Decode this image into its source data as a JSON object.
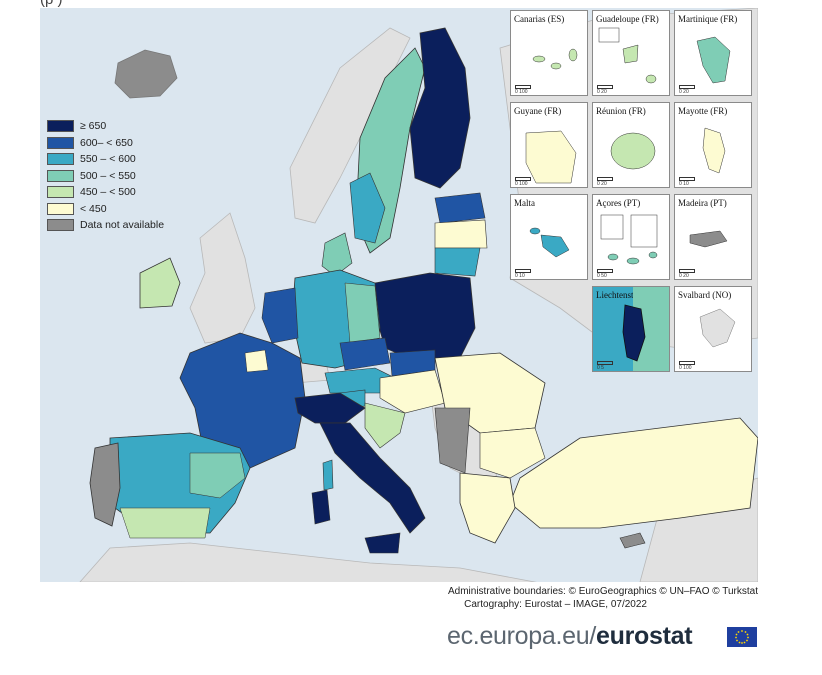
{
  "header": {
    "title_fragment": "(p                                                       )"
  },
  "legend": {
    "items": [
      {
        "label": "≥ 650",
        "color": "#0b1f5c"
      },
      {
        "label": "600– < 650",
        "color": "#2055a4"
      },
      {
        "label": "550 – < 600",
        "color": "#3aa9c4"
      },
      {
        "label": "500 – < 550",
        "color": "#7fcdb5"
      },
      {
        "label": "450 – < 500",
        "color": "#c5e7b1"
      },
      {
        "label": "< 450",
        "color": "#fdfbd2"
      },
      {
        "label": "Data not available",
        "color": "#8c8c8c"
      }
    ]
  },
  "map": {
    "sea_color": "#dbe6ef",
    "non_eu_color": "#e1e1e1",
    "border_color": "#333333"
  },
  "insets": [
    {
      "title": "Canarias (ES)",
      "scale": "0   100"
    },
    {
      "title": "Guadeloupe (FR)",
      "scale": "0   20"
    },
    {
      "title": "Martinique (FR)",
      "scale": "0   20"
    },
    {
      "title": "Guyane (FR)",
      "scale": "0   100"
    },
    {
      "title": "Réunion (FR)",
      "scale": "0   20"
    },
    {
      "title": "Mayotte (FR)",
      "scale": "0   10"
    },
    {
      "title": "Malta",
      "scale": "0   10"
    },
    {
      "title": "Açores (PT)",
      "scale": "0   50"
    },
    {
      "title": "Madeira (PT)",
      "scale": "0   20"
    },
    {
      "title": "Liechtenstein",
      "scale": "0   5"
    },
    {
      "title": "Svalbard (NO)",
      "scale": "0   100"
    }
  ],
  "footer": {
    "credit_1": "Administrative boundaries: © EuroGeographics © UN–FAO © Turkstat",
    "credit_2": "Cartography: Eurostat – IMAGE, 07/2022",
    "brand_domain": "ec.europa.eu/",
    "brand_name": "eurostat",
    "flag_icon": "eu-flag-icon"
  }
}
